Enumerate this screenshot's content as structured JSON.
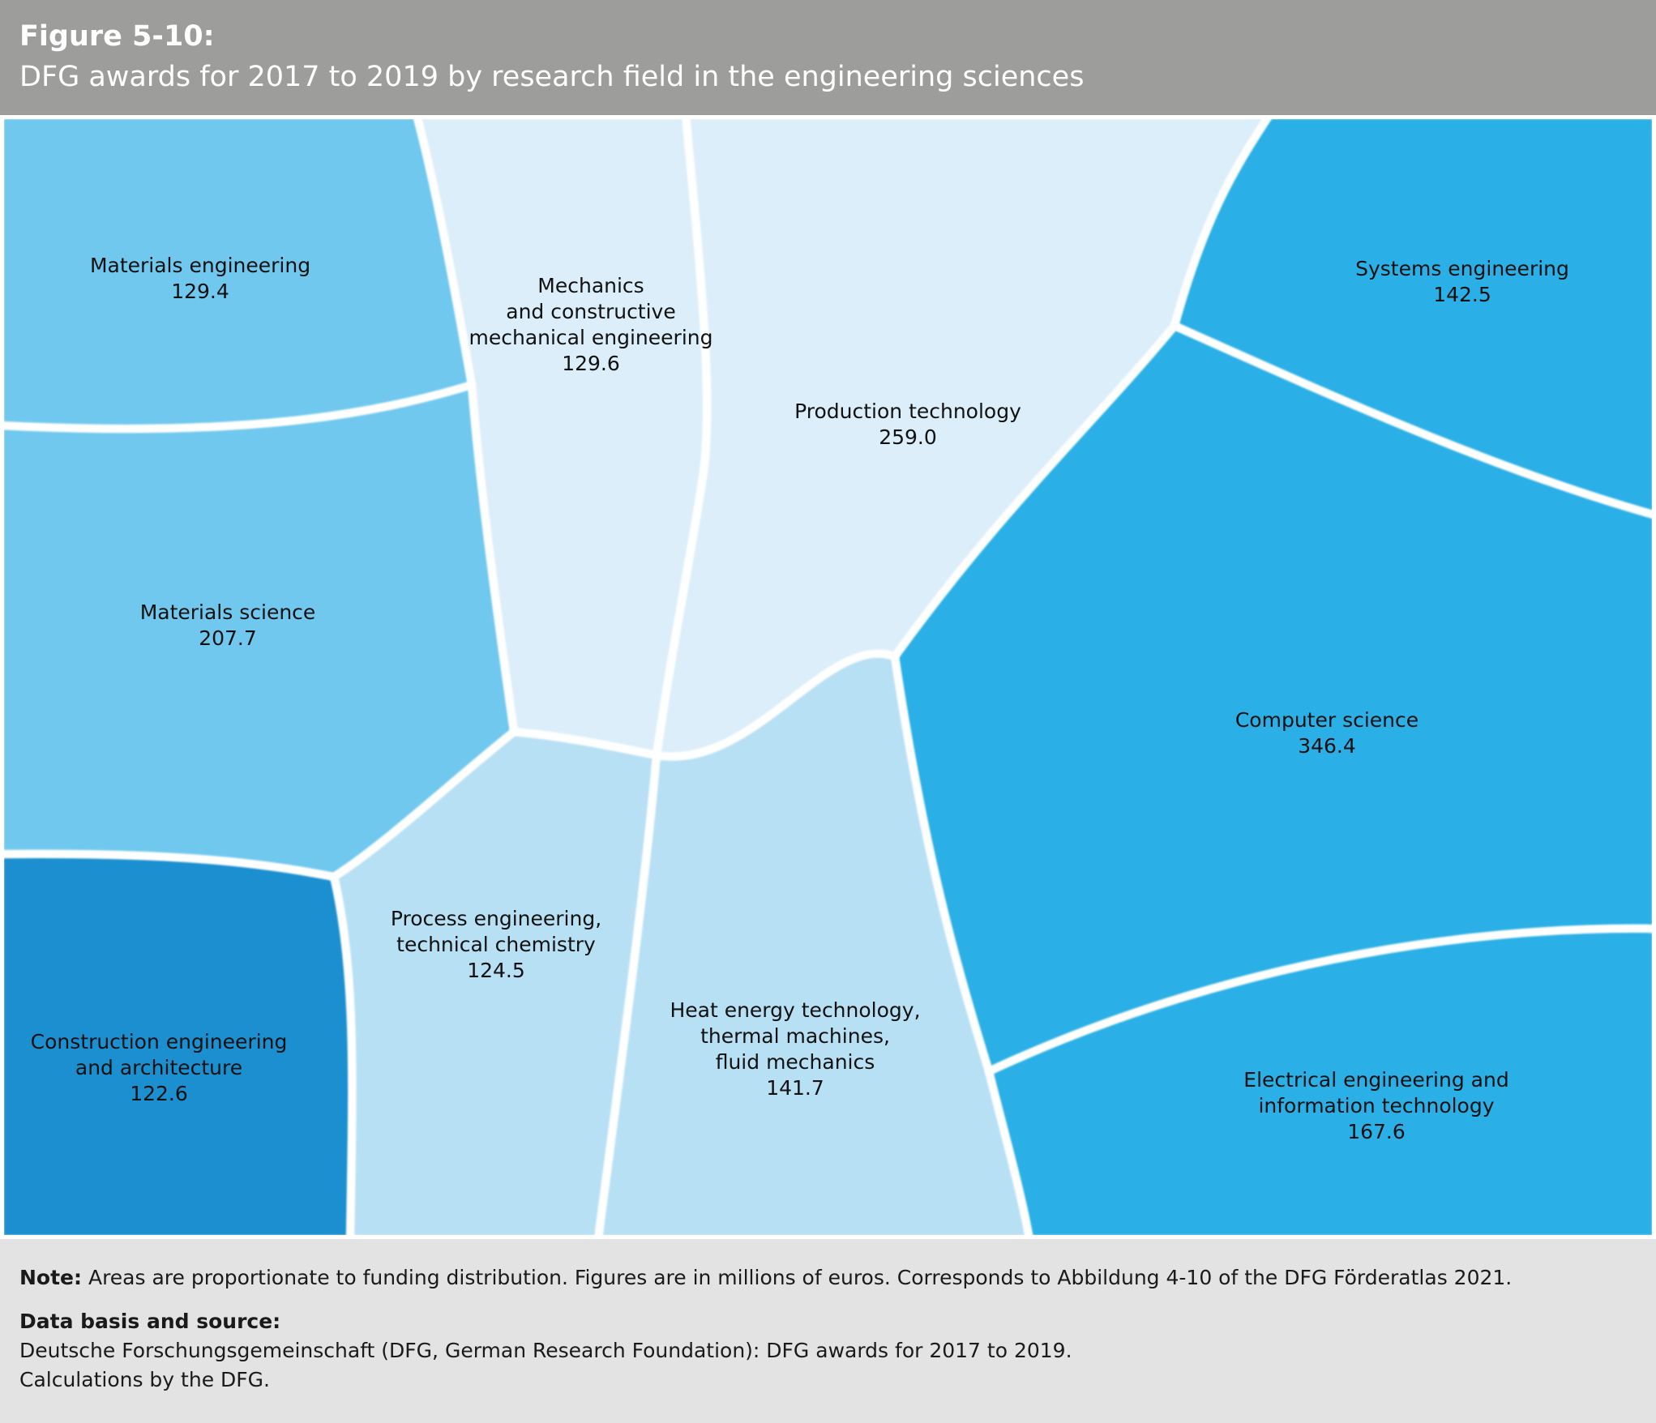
{
  "header": {
    "figure_number": "Figure 5-10:",
    "title": "DFG awards for 2017 to 2019 by research field in the engineering sciences"
  },
  "colors": {
    "header_bg": "#9d9d9c",
    "footer_bg": "#e3e3e3",
    "separator": "#ffffff"
  },
  "chart_data": {
    "type": "voronoi-treemap",
    "title": "DFG awards for 2017 to 2019 by research field in the engineering sciences",
    "unit": "millions of euros",
    "cells": [
      {
        "id": "materials-engineering",
        "label": [
          "Materials engineering"
        ],
        "value": 129.4,
        "value_text": "129.4",
        "color": "#70c8ee"
      },
      {
        "id": "mechanics-mechanical-engineering",
        "label": [
          "Mechanics",
          "and constructive",
          "mechanical engineering"
        ],
        "value": 129.6,
        "value_text": "129.6",
        "color": "#dceef9"
      },
      {
        "id": "production-technology",
        "label": [
          "Production technology"
        ],
        "value": 259.0,
        "value_text": "259.0",
        "color": "#dceef9"
      },
      {
        "id": "systems-engineering",
        "label": [
          "Systems engineering"
        ],
        "value": 142.5,
        "value_text": "142.5",
        "color": "#2aafe6"
      },
      {
        "id": "materials-science",
        "label": [
          "Materials science"
        ],
        "value": 207.7,
        "value_text": "207.7",
        "color": "#70c8ee"
      },
      {
        "id": "computer-science",
        "label": [
          "Computer science"
        ],
        "value": 346.4,
        "value_text": "346.4",
        "color": "#2aafe6"
      },
      {
        "id": "construction-engineering",
        "label": [
          "Construction engineering",
          "and architecture"
        ],
        "value": 122.6,
        "value_text": "122.6",
        "color": "#1b8fcf"
      },
      {
        "id": "process-engineering",
        "label": [
          "Process engineering,",
          "technical chemistry"
        ],
        "value": 124.5,
        "value_text": "124.5",
        "color": "#b8e0f4"
      },
      {
        "id": "heat-energy-technology",
        "label": [
          "Heat energy technology,",
          "thermal machines,",
          "fluid mechanics"
        ],
        "value": 141.7,
        "value_text": "141.7",
        "color": "#b8e0f4"
      },
      {
        "id": "electrical-engineering",
        "label": [
          "Electrical engineering and",
          "information technology"
        ],
        "value": 167.6,
        "value_text": "167.6",
        "color": "#2aafe6"
      }
    ]
  },
  "footer": {
    "note_label": "Note:",
    "note_text": "Areas are proportionate to funding distribution. Figures are in millions of euros. Corresponds to Abbildung 4-10 of the DFG Förderatlas 2021.",
    "source_label": "Data basis and source:",
    "source_line1": "Deutsche Forschungsgemeinschaft (DFG, German Research Foundation): DFG awards for 2017 to 2019.",
    "source_line2": "Calculations by the DFG."
  }
}
